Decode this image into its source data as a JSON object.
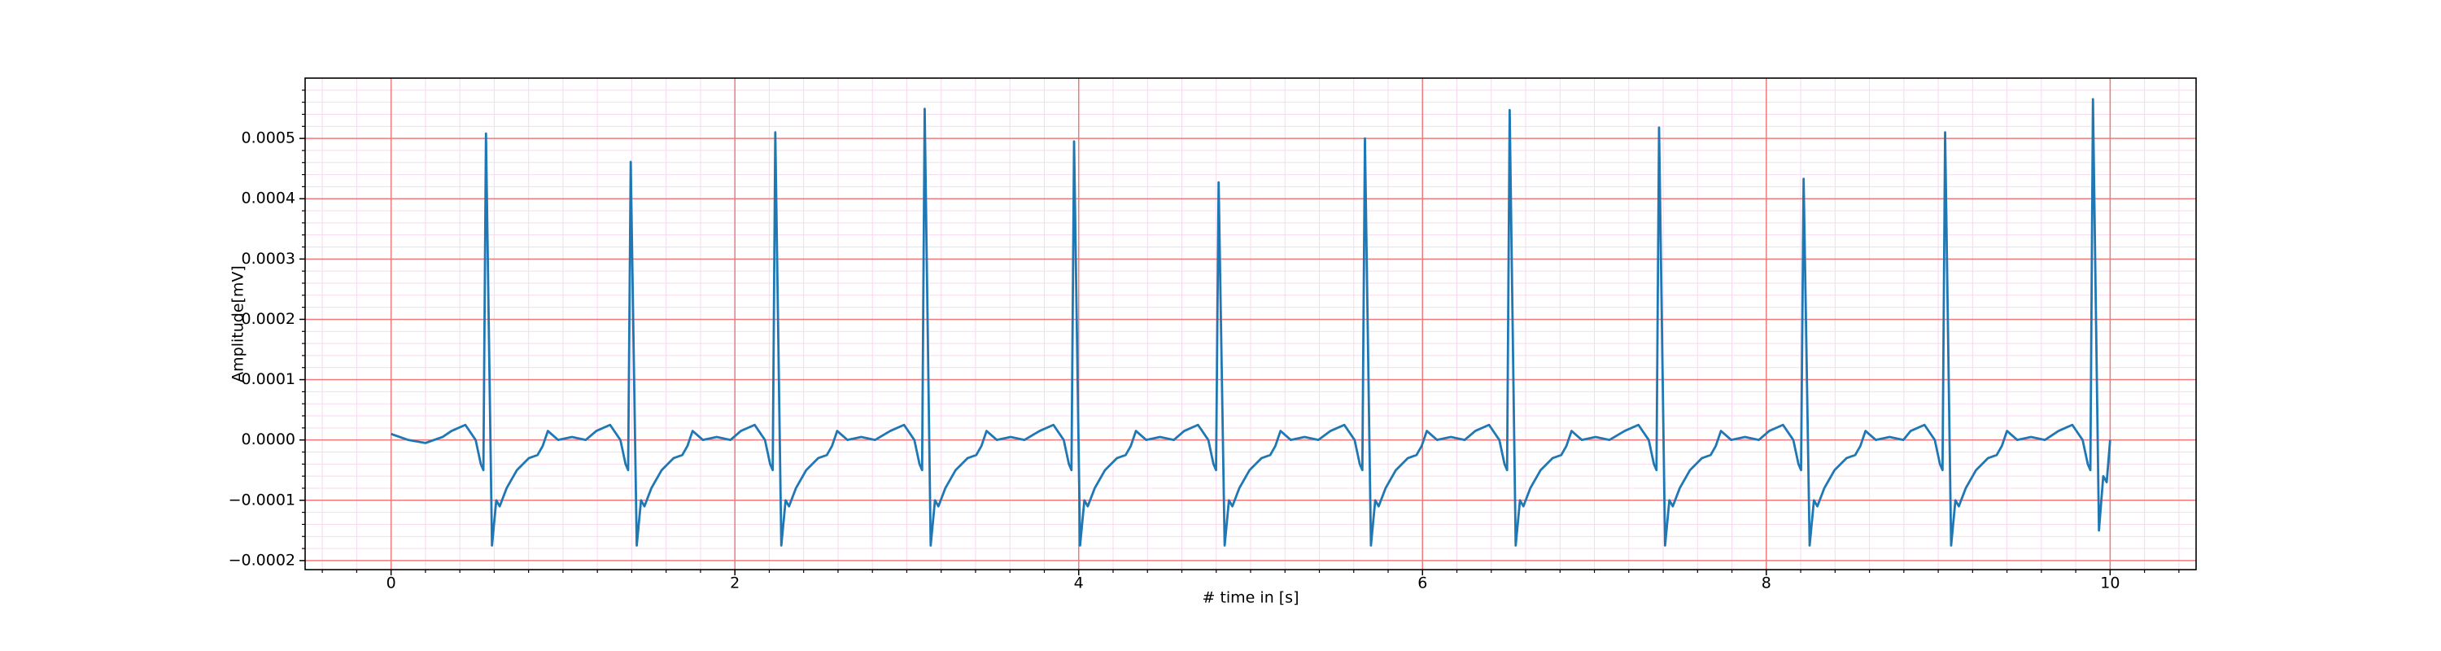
{
  "chart_data": {
    "type": "line",
    "xlabel": "# time in [s]",
    "ylabel": "Amplitude[mV]",
    "xlim": [
      -0.5,
      10.5
    ],
    "ylim": [
      -0.000215,
      0.0006
    ],
    "xticks": [
      0,
      2,
      4,
      6,
      8,
      10
    ],
    "yticks": [
      {
        "value": -0.0002,
        "label": "−0.0002"
      },
      {
        "value": -0.0001,
        "label": "−0.0001"
      },
      {
        "value": 0,
        "label": "0.0000"
      },
      0.0001,
      0.0002,
      0.0003,
      0.0004,
      0.0005
    ],
    "grid": true,
    "minor_grid": true,
    "grid_color": "#f07a7a",
    "minor_grid_color": "#f7d9ee",
    "series": [
      {
        "color": "#1f77b4",
        "x": [
          0,
          0.1,
          0.2,
          0.3,
          0.352,
          0.432,
          0.492,
          0.522,
          0.537,
          0.552,
          0.587,
          0.612,
          0.632,
          0.672,
          0.732,
          0.802,
          0.852,
          0.882,
          0.912,
          0.972,
          1.052,
          1.132,
          1.194,
          1.274,
          1.334,
          1.364,
          1.379,
          1.394,
          1.429,
          1.454,
          1.474,
          1.514,
          1.574,
          1.644,
          1.694,
          1.724,
          1.754,
          1.814,
          1.894,
          1.974,
          2.035,
          2.115,
          2.175,
          2.205,
          2.22,
          2.235,
          2.27,
          2.295,
          2.315,
          2.355,
          2.415,
          2.485,
          2.535,
          2.565,
          2.595,
          2.655,
          2.735,
          2.815,
          2.904,
          2.984,
          3.044,
          3.074,
          3.089,
          3.104,
          3.139,
          3.164,
          3.184,
          3.224,
          3.284,
          3.354,
          3.404,
          3.434,
          3.464,
          3.524,
          3.604,
          3.684,
          3.773,
          3.853,
          3.913,
          3.943,
          3.958,
          3.973,
          4.008,
          4.033,
          4.053,
          4.093,
          4.153,
          4.223,
          4.273,
          4.303,
          4.333,
          4.393,
          4.473,
          4.553,
          4.614,
          4.694,
          4.754,
          4.784,
          4.799,
          4.814,
          4.849,
          4.874,
          4.894,
          4.934,
          4.994,
          5.064,
          5.114,
          5.144,
          5.174,
          5.234,
          5.314,
          5.394,
          5.465,
          5.545,
          5.605,
          5.635,
          5.65,
          5.665,
          5.7,
          5.725,
          5.745,
          5.785,
          5.845,
          5.915,
          5.965,
          5.995,
          6.025,
          6.085,
          6.165,
          6.245,
          6.307,
          6.387,
          6.447,
          6.477,
          6.492,
          6.507,
          6.542,
          6.567,
          6.587,
          6.627,
          6.687,
          6.757,
          6.807,
          6.837,
          6.867,
          6.927,
          7.007,
          7.087,
          7.176,
          7.256,
          7.316,
          7.346,
          7.361,
          7.376,
          7.411,
          7.436,
          7.456,
          7.496,
          7.556,
          7.626,
          7.676,
          7.706,
          7.736,
          7.796,
          7.876,
          7.956,
          8.017,
          8.097,
          8.157,
          8.187,
          8.202,
          8.217,
          8.252,
          8.277,
          8.297,
          8.337,
          8.397,
          8.467,
          8.517,
          8.547,
          8.577,
          8.637,
          8.717,
          8.797,
          8.84,
          8.92,
          8.98,
          9.01,
          9.025,
          9.04,
          9.075,
          9.1,
          9.12,
          9.16,
          9.22,
          9.29,
          9.34,
          9.37,
          9.4,
          9.46,
          9.54,
          9.62,
          9.7,
          9.78,
          9.84,
          9.87,
          9.885,
          9.9,
          9.935,
          9.96,
          9.98,
          10.0
        ],
        "values": [
          1e-05,
          0,
          -5e-06,
          5e-06,
          1.5e-05,
          2.5e-05,
          0,
          -4e-05,
          -5e-05,
          0.000508,
          -0.000175,
          -0.0001,
          -0.00011,
          -8e-05,
          -5e-05,
          -3e-05,
          -2.5e-05,
          -1e-05,
          1.5e-05,
          0,
          5e-06,
          0,
          1.5e-05,
          2.5e-05,
          0,
          -4e-05,
          -5e-05,
          0.000461,
          -0.000175,
          -0.0001,
          -0.00011,
          -8e-05,
          -5e-05,
          -3e-05,
          -2.5e-05,
          -1e-05,
          1.5e-05,
          0,
          5e-06,
          0,
          1.5e-05,
          2.5e-05,
          0,
          -4e-05,
          -5e-05,
          0.00051,
          -0.000175,
          -0.0001,
          -0.00011,
          -8e-05,
          -5e-05,
          -3e-05,
          -2.5e-05,
          -1e-05,
          1.5e-05,
          0,
          5e-06,
          0,
          1.5e-05,
          2.5e-05,
          0,
          -4e-05,
          -5e-05,
          0.000549,
          -0.000175,
          -0.0001,
          -0.00011,
          -8e-05,
          -5e-05,
          -3e-05,
          -2.5e-05,
          -1e-05,
          1.5e-05,
          0,
          5e-06,
          0,
          1.5e-05,
          2.5e-05,
          0,
          -4e-05,
          -5e-05,
          0.000495,
          -0.000175,
          -0.0001,
          -0.00011,
          -8e-05,
          -5e-05,
          -3e-05,
          -2.5e-05,
          -1e-05,
          1.5e-05,
          0,
          5e-06,
          0,
          1.5e-05,
          2.5e-05,
          0,
          -4e-05,
          -5e-05,
          0.000427,
          -0.000175,
          -0.0001,
          -0.00011,
          -8e-05,
          -5e-05,
          -3e-05,
          -2.5e-05,
          -1e-05,
          1.5e-05,
          0,
          5e-06,
          0,
          1.5e-05,
          2.5e-05,
          0,
          -4e-05,
          -5e-05,
          0.0005,
          -0.000175,
          -0.0001,
          -0.00011,
          -8e-05,
          -5e-05,
          -3e-05,
          -2.5e-05,
          -1e-05,
          1.5e-05,
          0,
          5e-06,
          0,
          1.5e-05,
          2.5e-05,
          0,
          -4e-05,
          -5e-05,
          0.000547,
          -0.000175,
          -0.0001,
          -0.00011,
          -8e-05,
          -5e-05,
          -3e-05,
          -2.5e-05,
          -1e-05,
          1.5e-05,
          0,
          5e-06,
          0,
          1.5e-05,
          2.5e-05,
          0,
          -4e-05,
          -5e-05,
          0.000518,
          -0.000175,
          -0.0001,
          -0.00011,
          -8e-05,
          -5e-05,
          -3e-05,
          -2.5e-05,
          -1e-05,
          1.5e-05,
          0,
          5e-06,
          0,
          1.5e-05,
          2.5e-05,
          0,
          -4e-05,
          -5e-05,
          0.000433,
          -0.000175,
          -0.0001,
          -0.00011,
          -8e-05,
          -5e-05,
          -3e-05,
          -2.5e-05,
          -1e-05,
          1.5e-05,
          0,
          5e-06,
          0,
          1.5e-05,
          2.5e-05,
          0,
          -4e-05,
          -5e-05,
          0.00051,
          -0.000175,
          -0.0001,
          -0.00011,
          -8e-05,
          -5e-05,
          -3e-05,
          -2.5e-05,
          -1e-05,
          1.5e-05,
          0,
          5e-06,
          0,
          1.5e-05,
          2.5e-05,
          0,
          -4e-05,
          -5e-05,
          0.000565,
          -0.00015,
          -6e-05,
          -7e-05,
          0
        ]
      }
    ]
  }
}
